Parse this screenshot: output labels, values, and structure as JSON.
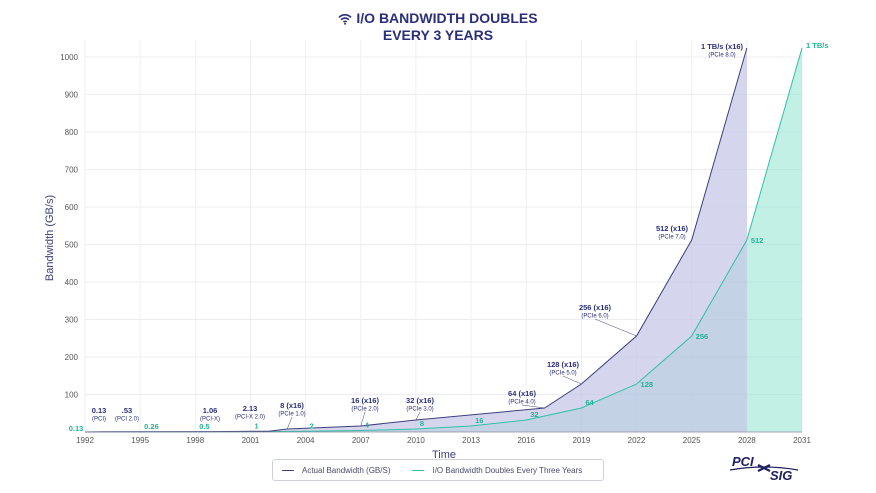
{
  "title": {
    "line1": "I/O BANDWIDTH DOUBLES",
    "line2": "EVERY 3 YEARS"
  },
  "logo": {
    "text": "PCI-SIG"
  },
  "legend": {
    "actual": "Actual Bandwidth (GB/S)",
    "doubles": "I/O Bandwidth Doubles Every Three Years"
  },
  "colors": {
    "title": "#2b2f7a",
    "actual_line": "#3d3f7c",
    "actual_fill": "#c3c4e6",
    "doubles_line": "#2fc1a6",
    "doubles_fill": "#8fe3cf",
    "doubles_label": "#21b496",
    "actual_label": "#2b2f7a"
  },
  "chart_data": {
    "type": "area",
    "xlabel": "Time",
    "ylabel": "Bandwidth (GB/s)",
    "xlim": [
      1992,
      2031
    ],
    "ylim": [
      0,
      1050
    ],
    "x_ticks": [
      1992,
      1995,
      1998,
      2001,
      2004,
      2007,
      2010,
      2013,
      2016,
      2019,
      2022,
      2025,
      2028,
      2031
    ],
    "y_ticks": [
      100,
      200,
      300,
      400,
      500,
      600,
      700,
      800,
      900,
      1000
    ],
    "grid": true,
    "legend_position": "bottom",
    "series": [
      {
        "name": "Actual Bandwidth (GB/S)",
        "points": [
          {
            "x": 1992,
            "y": 0.13,
            "label": "0.13",
            "sublabel": "(PCI)"
          },
          {
            "x": 1993,
            "y": 0.53,
            "label": ".53",
            "sublabel": "(PCI 2.0)"
          },
          {
            "x": 1999,
            "y": 1.06,
            "label": "1.06",
            "sublabel": "(PCI-X)"
          },
          {
            "x": 2002,
            "y": 2.13,
            "label": "2.13",
            "sublabel": "(PCI-X 2.0)"
          },
          {
            "x": 2003,
            "y": 8,
            "label": "8 (x16)",
            "sublabel": "(PCIe 1.0)"
          },
          {
            "x": 2007,
            "y": 16,
            "label": "16 (x16)",
            "sublabel": "(PCIe 2.0)"
          },
          {
            "x": 2010,
            "y": 32,
            "label": "32 (x16)",
            "sublabel": "(PCIe 3.0)"
          },
          {
            "x": 2017,
            "y": 64,
            "label": "64 (x16)",
            "sublabel": "(PCIe 4.0)"
          },
          {
            "x": 2019,
            "y": 128,
            "label": "128 (x16)",
            "sublabel": "(PCIe 5.0)"
          },
          {
            "x": 2022,
            "y": 256,
            "label": "256 (x16)",
            "sublabel": "(PCIe 6.0)"
          },
          {
            "x": 2025,
            "y": 512,
            "label": "512 (x16)",
            "sublabel": "(PCIe 7.0)"
          },
          {
            "x": 2028,
            "y": 1024,
            "label": "1 TB/s (x16)",
            "sublabel": "(PCIe 8.0)"
          }
        ]
      },
      {
        "name": "I/O Bandwidth Doubles Every Three Years",
        "points": [
          {
            "x": 1992,
            "y": 0.13,
            "label": "0.13"
          },
          {
            "x": 1995,
            "y": 0.26,
            "label": "0.26"
          },
          {
            "x": 1998,
            "y": 0.5,
            "label": "0.5"
          },
          {
            "x": 2001,
            "y": 1,
            "label": "1"
          },
          {
            "x": 2004,
            "y": 2,
            "label": "2"
          },
          {
            "x": 2007,
            "y": 4,
            "label": "4"
          },
          {
            "x": 2010,
            "y": 8,
            "label": "8"
          },
          {
            "x": 2013,
            "y": 16,
            "label": "16"
          },
          {
            "x": 2016,
            "y": 32,
            "label": "32"
          },
          {
            "x": 2019,
            "y": 64,
            "label": "64"
          },
          {
            "x": 2022,
            "y": 128,
            "label": "128"
          },
          {
            "x": 2025,
            "y": 256,
            "label": "256"
          },
          {
            "x": 2028,
            "y": 512,
            "label": "512"
          },
          {
            "x": 2031,
            "y": 1024,
            "label": "1 TB/s"
          }
        ]
      }
    ]
  }
}
